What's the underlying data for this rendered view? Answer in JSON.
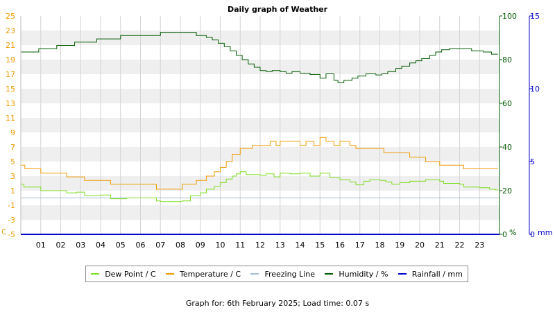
{
  "chart_data": {
    "type": "line",
    "title": "Daily graph of Weather",
    "x_ticks": [
      "01",
      "02",
      "03",
      "04",
      "05",
      "06",
      "07",
      "08",
      "09",
      "10",
      "11",
      "12",
      "13",
      "14",
      "15",
      "16",
      "17",
      "18",
      "19",
      "20",
      "21",
      "22",
      "23"
    ],
    "xlim": [
      0,
      24
    ],
    "left_axis": {
      "unit": "C",
      "ylim": [
        -5,
        25
      ],
      "ticks": [
        -5,
        -3,
        -1,
        1,
        3,
        5,
        7,
        9,
        11,
        13,
        15,
        17,
        19,
        21,
        23,
        25
      ]
    },
    "humidity_axis": {
      "unit": "%",
      "ylim": [
        0,
        100
      ],
      "ticks": [
        0,
        20,
        40,
        60,
        80,
        100
      ]
    },
    "rain_axis": {
      "unit": "mm",
      "ylim": [
        0,
        15
      ],
      "ticks": [
        0,
        5,
        10,
        15
      ]
    },
    "grid": true,
    "series": [
      {
        "name": "Dew Point / C",
        "axis": "left",
        "color": "#7ddc1f",
        "points": [
          [
            0,
            1.9
          ],
          [
            0.15,
            1.5
          ],
          [
            1,
            1.0
          ],
          [
            2.3,
            0.7
          ],
          [
            2.8,
            0.8
          ],
          [
            3.2,
            0.3
          ],
          [
            4,
            0.4
          ],
          [
            4.5,
            -0.1
          ],
          [
            5.3,
            0.0
          ],
          [
            6.8,
            -0.4
          ],
          [
            7,
            -0.5
          ],
          [
            8.1,
            -0.4
          ],
          [
            8.5,
            0.3
          ],
          [
            9,
            0.7
          ],
          [
            9.3,
            1.2
          ],
          [
            9.7,
            1.6
          ],
          [
            10,
            2.1
          ],
          [
            10.3,
            2.6
          ],
          [
            10.6,
            3.0
          ],
          [
            10.8,
            3.3
          ],
          [
            11,
            3.6
          ],
          [
            11.3,
            3.2
          ],
          [
            12,
            3.1
          ],
          [
            12.3,
            3.3
          ],
          [
            12.7,
            2.9
          ],
          [
            13,
            3.4
          ],
          [
            13.5,
            3.3
          ],
          [
            14,
            3.4
          ],
          [
            14.5,
            3.0
          ],
          [
            15,
            3.4
          ],
          [
            15.5,
            2.8
          ],
          [
            16,
            2.5
          ],
          [
            16.5,
            2.2
          ],
          [
            16.8,
            1.8
          ],
          [
            17.2,
            2.3
          ],
          [
            17.5,
            2.5
          ],
          [
            18,
            2.4
          ],
          [
            18.3,
            2.2
          ],
          [
            18.6,
            1.9
          ],
          [
            19,
            2.1
          ],
          [
            19.5,
            2.3
          ],
          [
            20.3,
            2.5
          ],
          [
            21,
            2.3
          ],
          [
            21.2,
            2.0
          ],
          [
            22,
            1.9
          ],
          [
            22.2,
            1.5
          ],
          [
            23,
            1.4
          ],
          [
            23.5,
            1.2
          ],
          [
            23.8,
            1.1
          ]
        ]
      },
      {
        "name": "Temperature / C",
        "axis": "left",
        "color": "#ee9a00",
        "points": [
          [
            0,
            4.5
          ],
          [
            0.2,
            4.0
          ],
          [
            1,
            3.4
          ],
          [
            2.3,
            2.9
          ],
          [
            3.2,
            2.4
          ],
          [
            4.5,
            1.9
          ],
          [
            6.8,
            1.2
          ],
          [
            8.1,
            1.9
          ],
          [
            8.8,
            2.4
          ],
          [
            9.3,
            3.0
          ],
          [
            9.7,
            3.6
          ],
          [
            10,
            4.2
          ],
          [
            10.3,
            5.0
          ],
          [
            10.6,
            6.0
          ],
          [
            11,
            6.8
          ],
          [
            11.6,
            7.2
          ],
          [
            12.5,
            7.8
          ],
          [
            12.8,
            7.2
          ],
          [
            13,
            7.8
          ],
          [
            13.5,
            7.8
          ],
          [
            14,
            7.2
          ],
          [
            14.3,
            7.8
          ],
          [
            14.7,
            7.2
          ],
          [
            15,
            8.3
          ],
          [
            15.3,
            7.8
          ],
          [
            15.7,
            7.2
          ],
          [
            16,
            7.8
          ],
          [
            16.5,
            7.2
          ],
          [
            16.8,
            6.8
          ],
          [
            18.2,
            6.2
          ],
          [
            19.5,
            5.6
          ],
          [
            20.3,
            5.0
          ],
          [
            21,
            4.5
          ],
          [
            22.2,
            4.0
          ],
          [
            23.9,
            4.0
          ]
        ]
      },
      {
        "name": "Freezing Line",
        "axis": "left",
        "color": "#a0bcd4",
        "points": [
          [
            0,
            0
          ],
          [
            24,
            0
          ]
        ]
      },
      {
        "name": "Humidity / %",
        "axis": "humidity",
        "color": "#005a00",
        "points": [
          [
            0,
            83.5
          ],
          [
            0.9,
            85
          ],
          [
            1.8,
            86.5
          ],
          [
            2.7,
            88
          ],
          [
            3.8,
            89.5
          ],
          [
            5,
            91
          ],
          [
            7,
            92.5
          ],
          [
            8.8,
            91
          ],
          [
            9.3,
            90.2
          ],
          [
            9.6,
            89
          ],
          [
            9.9,
            87.5
          ],
          [
            10.2,
            86
          ],
          [
            10.5,
            84
          ],
          [
            10.8,
            82
          ],
          [
            11.1,
            80
          ],
          [
            11.4,
            78
          ],
          [
            11.7,
            76.5
          ],
          [
            12,
            75
          ],
          [
            12.3,
            74.5
          ],
          [
            12.6,
            75
          ],
          [
            13,
            74.5
          ],
          [
            13.3,
            73.8
          ],
          [
            13.6,
            74.5
          ],
          [
            14,
            73.8
          ],
          [
            14.5,
            73.2
          ],
          [
            15,
            71.5
          ],
          [
            15.3,
            73.5
          ],
          [
            15.5,
            73.5
          ],
          [
            15.7,
            70.5
          ],
          [
            15.9,
            69.5
          ],
          [
            16.2,
            70.5
          ],
          [
            16.6,
            71.5
          ],
          [
            16.9,
            72.5
          ],
          [
            17.3,
            73.5
          ],
          [
            17.8,
            73
          ],
          [
            18.1,
            73.5
          ],
          [
            18.4,
            74.5
          ],
          [
            18.8,
            76
          ],
          [
            19.1,
            77
          ],
          [
            19.5,
            78.5
          ],
          [
            19.8,
            79.5
          ],
          [
            20.1,
            80.5
          ],
          [
            20.5,
            82
          ],
          [
            20.8,
            83.5
          ],
          [
            21.1,
            84.5
          ],
          [
            21.5,
            85
          ],
          [
            22.6,
            84
          ],
          [
            23.2,
            83.5
          ],
          [
            23.6,
            82.5
          ],
          [
            23.9,
            82.5
          ]
        ]
      },
      {
        "name": "Rainfall / mm",
        "axis": "rain",
        "color": "#0000cc",
        "points": [
          [
            0,
            0
          ],
          [
            24,
            0
          ]
        ]
      }
    ]
  },
  "legend": {
    "dew": "Dew Point / C",
    "temp": "Temperature / C",
    "freeze": "Freezing Line",
    "humidity": "Humidity / %",
    "rain": "Rainfall / mm"
  },
  "footer": "Graph for: 6th February 2025; Load time: 0.07 s"
}
